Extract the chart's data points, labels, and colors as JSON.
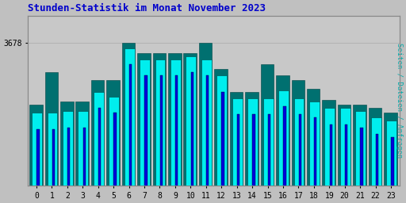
{
  "title": "Stunden-Statistik im Monat November 2023",
  "ylabel_right": "Seiten / Dateien / Anfragen",
  "ytick_label": "3678",
  "background_color": "#c0c0c0",
  "plot_bg_color": "#c8c8c8",
  "title_color": "#0000cc",
  "ylabel_color": "#00aaaa",
  "bar_cyan": "#00eeee",
  "bar_teal": "#007070",
  "bar_blue": "#0000dd",
  "bar_border": "#004444",
  "categories": [
    0,
    1,
    2,
    3,
    4,
    5,
    6,
    7,
    8,
    9,
    10,
    11,
    12,
    13,
    14,
    15,
    16,
    17,
    18,
    19,
    20,
    21,
    22,
    23
  ],
  "teal_heights": [
    3640,
    3660,
    3642,
    3642,
    3655,
    3655,
    3678,
    3672,
    3672,
    3672,
    3672,
    3678,
    3662,
    3648,
    3648,
    3665,
    3658,
    3655,
    3650,
    3643,
    3640,
    3640,
    3638,
    3635
  ],
  "cyan_heights": [
    3635,
    3635,
    3636,
    3636,
    3648,
    3645,
    3675,
    3668,
    3668,
    3668,
    3670,
    3668,
    3658,
    3644,
    3644,
    3644,
    3649,
    3644,
    3642,
    3638,
    3638,
    3636,
    3632,
    3630
  ],
  "blue_heights": [
    3625,
    3625,
    3626,
    3626,
    3638,
    3635,
    3665,
    3658,
    3658,
    3658,
    3660,
    3658,
    3648,
    3634,
    3634,
    3634,
    3639,
    3634,
    3632,
    3628,
    3628,
    3626,
    3622,
    3620
  ],
  "ymin": 3590,
  "ymax": 3695
}
